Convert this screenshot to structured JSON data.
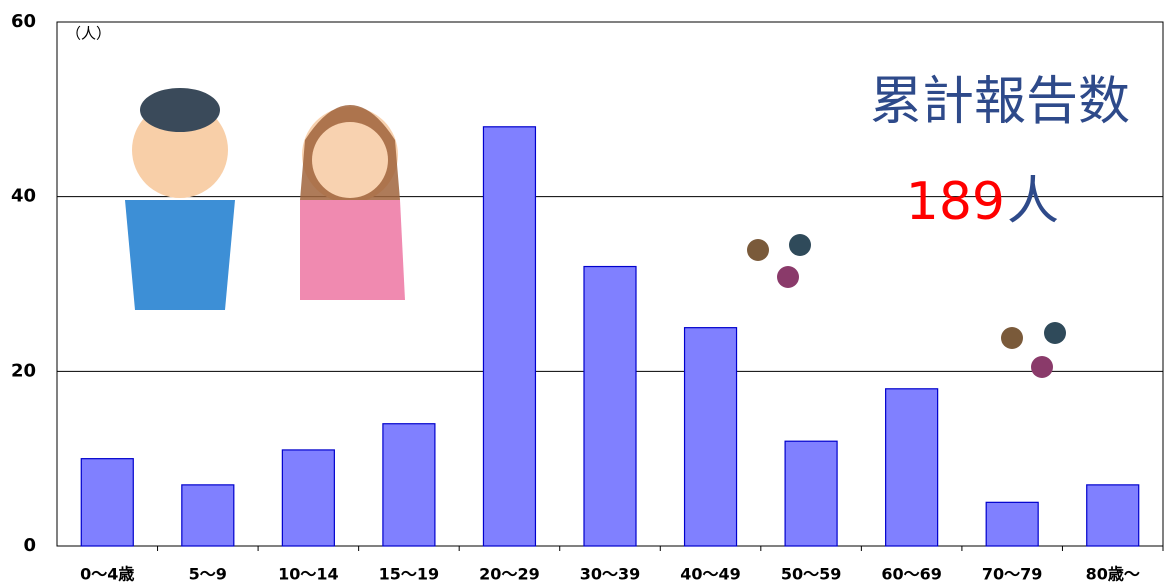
{
  "chart_data": {
    "type": "bar",
    "unit_label": "（人）",
    "annotations": [
      "累計報告数",
      "189",
      "人"
    ],
    "categories": [
      "0〜4歳",
      "5〜9",
      "10〜14",
      "15〜19",
      "20〜29",
      "30〜39",
      "40〜49",
      "50〜59",
      "60〜69",
      "70〜79",
      "80歳〜"
    ],
    "values": [
      10,
      7,
      11,
      14,
      48,
      32,
      25,
      12,
      18,
      5,
      7
    ],
    "color": "#8080ff",
    "ylim": [
      0,
      60
    ],
    "yticks": [
      0,
      20,
      40,
      60
    ],
    "grid": true
  }
}
